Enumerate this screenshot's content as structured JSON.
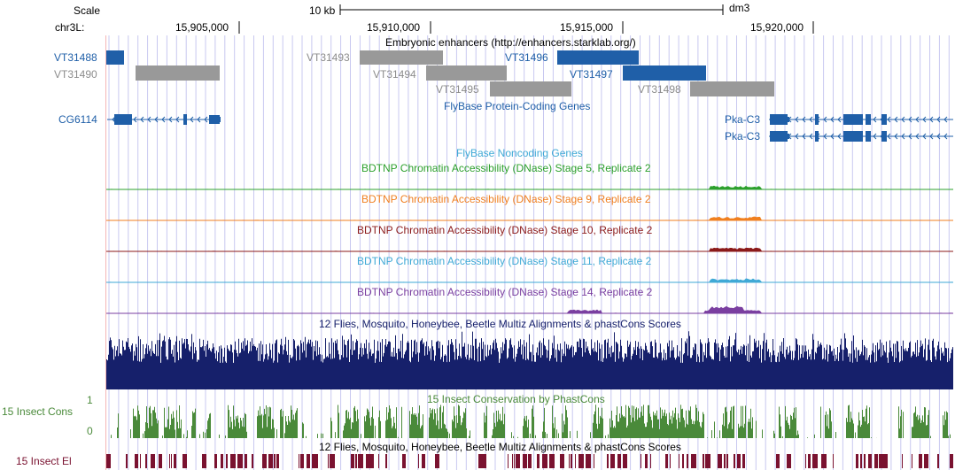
{
  "ruler": {
    "scale_label": "Scale",
    "scale_bar_label": "10 kb",
    "assembly": "dm3",
    "chrom_label": "chr3L:",
    "positions": [
      "15,905,000",
      "15,910,000",
      "15,915,000",
      "15,920,000"
    ]
  },
  "enhancers": {
    "title": "Embryonic enhancers (http://enhancers.starklab.org/)",
    "items": [
      {
        "label": "VT31488",
        "highlight": true
      },
      {
        "label": "VT31490",
        "highlight": false
      },
      {
        "label": "VT31493",
        "highlight": false
      },
      {
        "label": "VT31494",
        "highlight": false
      },
      {
        "label": "VT31495",
        "highlight": false
      },
      {
        "label": "VT31496",
        "highlight": true
      },
      {
        "label": "VT31497",
        "highlight": true
      },
      {
        "label": "VT31498",
        "highlight": false
      }
    ]
  },
  "genes": {
    "title": "FlyBase Protein-Coding Genes",
    "items": [
      {
        "label": "CG6114"
      },
      {
        "label": "Pka-C3"
      },
      {
        "label": "Pka-C3"
      }
    ]
  },
  "noncoding": {
    "title": "FlyBase Noncoding Genes"
  },
  "dnase_tracks": [
    {
      "label": "BDTNP Chromatin Accessibility (DNase) Stage 5, Replicate 2",
      "color": "#2ca02c"
    },
    {
      "label": "BDTNP Chromatin Accessibility (DNase) Stage 9, Replicate 2",
      "color": "#f07f1f"
    },
    {
      "label": "BDTNP Chromatin Accessibility (DNase) Stage 10, Replicate 2",
      "color": "#8b1a1a"
    },
    {
      "label": "BDTNP Chromatin Accessibility (DNase) Stage 11, Replicate 2",
      "color": "#3fa9d6"
    },
    {
      "label": "BDTNP Chromatin Accessibility (DNase) Stage 14, Replicate 2",
      "color": "#7a3fa0"
    }
  ],
  "multiz": {
    "title": "12 Flies, Mosquito, Honeybee, Beetle Multiz Alignments & phastCons Scores",
    "color": "#16206b"
  },
  "phastcons": {
    "title": "15 Insect Conservation by PhastCons",
    "side_label": "15 Insect Cons",
    "max": "1",
    "min": "0",
    "color": "#4a8a3a"
  },
  "elements": {
    "title": "12 Flies, Mosquito, Honeybee, Beetle Multiz Alignments & phastCons Scores",
    "side_label": "15 Insect El",
    "color": "#7a1230"
  },
  "colors": {
    "gene": "#1f5fa8",
    "enhancer_gray": "#999999",
    "grid": "#c8c8f0",
    "left_edge": "#f4b6b6"
  }
}
